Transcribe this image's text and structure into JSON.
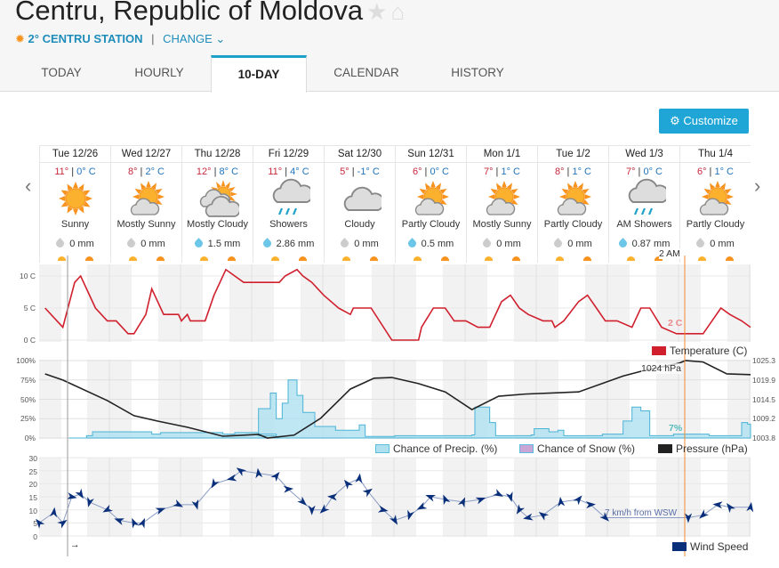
{
  "header": {
    "title": "Centru, Republic of Moldova",
    "station_temp": "2°",
    "station_name": "CENTRU STATION",
    "separator": "|",
    "change": "CHANGE"
  },
  "tabs": [
    {
      "label": "TODAY"
    },
    {
      "label": "HOURLY"
    },
    {
      "label": "10-DAY",
      "active": true
    },
    {
      "label": "CALENDAR"
    },
    {
      "label": "HISTORY"
    }
  ],
  "customize": "Customize",
  "days": [
    {
      "name": "Tue 12/26",
      "hi": "11°",
      "lo": "0° C",
      "icon": "sunny",
      "cond": "Sunny",
      "precip": "0 mm",
      "wet": false
    },
    {
      "name": "Wed 12/27",
      "hi": "8°",
      "lo": "2° C",
      "icon": "mostly-sunny",
      "cond": "Mostly Sunny",
      "precip": "0 mm",
      "wet": false
    },
    {
      "name": "Thu 12/28",
      "hi": "12°",
      "lo": "8° C",
      "icon": "mostly-cloudy",
      "cond": "Mostly Cloudy",
      "precip": "1.5 mm",
      "wet": true
    },
    {
      "name": "Fri 12/29",
      "hi": "11°",
      "lo": "4° C",
      "icon": "showers",
      "cond": "Showers",
      "precip": "2.86 mm",
      "wet": true
    },
    {
      "name": "Sat 12/30",
      "hi": "5°",
      "lo": "-1° C",
      "icon": "cloudy",
      "cond": "Cloudy",
      "precip": "0 mm",
      "wet": false
    },
    {
      "name": "Sun 12/31",
      "hi": "6°",
      "lo": "0° C",
      "icon": "mostly-sunny",
      "cond": "Partly Cloudy",
      "precip": "0.5 mm",
      "wet": true
    },
    {
      "name": "Mon 1/1",
      "hi": "7°",
      "lo": "1° C",
      "icon": "mostly-sunny",
      "cond": "Mostly Sunny",
      "precip": "0 mm",
      "wet": false
    },
    {
      "name": "Tue 1/2",
      "hi": "8°",
      "lo": "1° C",
      "icon": "mostly-sunny",
      "cond": "Partly Cloudy",
      "precip": "0 mm",
      "wet": false
    },
    {
      "name": "Wed 1/3",
      "hi": "7°",
      "lo": "0° C",
      "icon": "showers",
      "cond": "AM Showers",
      "precip": "0.87 mm",
      "wet": true
    },
    {
      "name": "Thu 1/4",
      "hi": "6°",
      "lo": "1° C",
      "icon": "mostly-sunny",
      "cond": "Partly Cloudy",
      "precip": "0 mm",
      "wet": false
    }
  ],
  "colors": {
    "temp": "#d0202e",
    "precip": "#5bc0de",
    "snow": "#b58fc4",
    "pressure": "#222222",
    "wind": "#0a2f7a",
    "accent": "#1fa5d6",
    "cursor": "#f08a30"
  },
  "chart_data": [
    {
      "type": "line",
      "title": "Temperature",
      "legend": "Temperature (C)",
      "x_unit": "hours from start",
      "xlim": [
        0,
        240
      ],
      "ylim": [
        0,
        12
      ],
      "yticks": [
        "0 C",
        "5 C",
        "10 C"
      ],
      "points": [
        [
          2,
          5
        ],
        [
          8,
          2
        ],
        [
          12,
          9
        ],
        [
          14,
          10
        ],
        [
          19,
          5
        ],
        [
          23,
          3
        ],
        [
          26,
          3
        ],
        [
          30,
          1
        ],
        [
          32,
          1
        ],
        [
          36,
          4
        ],
        [
          38,
          8
        ],
        [
          42,
          4
        ],
        [
          47,
          4
        ],
        [
          48,
          3
        ],
        [
          50,
          4
        ],
        [
          51,
          3
        ],
        [
          56,
          3
        ],
        [
          59,
          7
        ],
        [
          63,
          11
        ],
        [
          66,
          10
        ],
        [
          69,
          9
        ],
        [
          81,
          9
        ],
        [
          83,
          10
        ],
        [
          87,
          11
        ],
        [
          89,
          10
        ],
        [
          92,
          9
        ],
        [
          96,
          7
        ],
        [
          101,
          5
        ],
        [
          105,
          4
        ],
        [
          106,
          5
        ],
        [
          112,
          5
        ],
        [
          119,
          0
        ],
        [
          128,
          0
        ],
        [
          129,
          2
        ],
        [
          133,
          5
        ],
        [
          137,
          5
        ],
        [
          140,
          3
        ],
        [
          144,
          3
        ],
        [
          148,
          2
        ],
        [
          152,
          2
        ],
        [
          156,
          6
        ],
        [
          159,
          7
        ],
        [
          162,
          5
        ],
        [
          165,
          4
        ],
        [
          170,
          3
        ],
        [
          173,
          3
        ],
        [
          174,
          2
        ],
        [
          177,
          3
        ],
        [
          182,
          6
        ],
        [
          185,
          7
        ],
        [
          188,
          5
        ],
        [
          191,
          3
        ],
        [
          195,
          3
        ],
        [
          200,
          2
        ],
        [
          203,
          5
        ],
        [
          206,
          5
        ],
        [
          210,
          2
        ],
        [
          215,
          1
        ],
        [
          224,
          1
        ],
        [
          227,
          3
        ],
        [
          230,
          5
        ],
        [
          233,
          4
        ],
        [
          237,
          3
        ],
        [
          240,
          2
        ]
      ],
      "annotation": "2 C"
    },
    {
      "type": "area",
      "title": "Precipitation / Pressure",
      "legend": [
        "Chance of Precip. (%)",
        "Chance of Snow (%)",
        "Pressure (hPa)"
      ],
      "ylim": [
        0,
        100
      ],
      "yticks": [
        "0%",
        "25%",
        "50%",
        "75%",
        "100%"
      ],
      "y2ticks": [
        "1003.8",
        "1009.2",
        "1014.5",
        "1019.9",
        "1025.3"
      ],
      "y2lim": [
        1003.8,
        1025.3
      ],
      "precip": [
        [
          10,
          0
        ],
        [
          16,
          3
        ],
        [
          18,
          8
        ],
        [
          32,
          8
        ],
        [
          38,
          5
        ],
        [
          41,
          7
        ],
        [
          59,
          7
        ],
        [
          62,
          5
        ],
        [
          66,
          7
        ],
        [
          74,
          3
        ],
        [
          80,
          5
        ],
        [
          74,
          5
        ],
        [
          74,
          38
        ],
        [
          78,
          58
        ],
        [
          80,
          25
        ],
        [
          82,
          45
        ],
        [
          84,
          75
        ],
        [
          87,
          55
        ],
        [
          89,
          33
        ],
        [
          93,
          15
        ],
        [
          100,
          10
        ],
        [
          107,
          10
        ],
        [
          108,
          17
        ],
        [
          110,
          2
        ],
        [
          120,
          3
        ],
        [
          146,
          4
        ],
        [
          147,
          40
        ],
        [
          151,
          40
        ],
        [
          152,
          20
        ],
        [
          154,
          3
        ],
        [
          166,
          4
        ],
        [
          167,
          12
        ],
        [
          171,
          12
        ],
        [
          172,
          8
        ],
        [
          175,
          10
        ],
        [
          177,
          3
        ],
        [
          190,
          5
        ],
        [
          196,
          5
        ],
        [
          197,
          22
        ],
        [
          200,
          40
        ],
        [
          203,
          35
        ],
        [
          206,
          3
        ],
        [
          214,
          5
        ],
        [
          220,
          5
        ],
        [
          226,
          3
        ],
        [
          236,
          3
        ],
        [
          237,
          20
        ],
        [
          239,
          18
        ],
        [
          240,
          5
        ]
      ],
      "pressure": [
        [
          2,
          1021.6
        ],
        [
          8,
          1019.9
        ],
        [
          23,
          1014.2
        ],
        [
          32,
          1010
        ],
        [
          40,
          1008.5
        ],
        [
          50,
          1006.8
        ],
        [
          62,
          1004.3
        ],
        [
          74,
          1004.8
        ],
        [
          77,
          1003.8
        ],
        [
          86,
          1004.6
        ],
        [
          95,
          1009.3
        ],
        [
          105,
          1017.4
        ],
        [
          113,
          1020.4
        ],
        [
          119,
          1020.6
        ],
        [
          128,
          1018.9
        ],
        [
          137,
          1016.6
        ],
        [
          146,
          1011.7
        ],
        [
          155,
          1015.4
        ],
        [
          164,
          1016
        ],
        [
          182,
          1016.6
        ],
        [
          197,
          1021
        ],
        [
          203,
          1022.3
        ],
        [
          216,
          1024.6
        ],
        [
          218,
          1025.3
        ],
        [
          224,
          1024.9
        ],
        [
          232,
          1021.6
        ],
        [
          240,
          1021.4
        ]
      ],
      "annotations": [
        "1024 hPa",
        "7%"
      ]
    },
    {
      "type": "line",
      "title": "Wind Speed",
      "legend": "Wind Speed",
      "ylim": [
        0,
        30
      ],
      "yticks": [
        "0",
        "5",
        "10",
        "15",
        "20",
        "25",
        "30"
      ],
      "points": [
        [
          0,
          5
        ],
        [
          5,
          9
        ],
        [
          8,
          5
        ],
        [
          11,
          15
        ],
        [
          14,
          16
        ],
        [
          17,
          13
        ],
        [
          23,
          10
        ],
        [
          27,
          6
        ],
        [
          32,
          5
        ],
        [
          35,
          5
        ],
        [
          41,
          10
        ],
        [
          47,
          12
        ],
        [
          53,
          12
        ],
        [
          59,
          20
        ],
        [
          65,
          22
        ],
        [
          68,
          25
        ],
        [
          74,
          24
        ],
        [
          80,
          23
        ],
        [
          84,
          18
        ],
        [
          89,
          13
        ],
        [
          92,
          10
        ],
        [
          96,
          10
        ],
        [
          99,
          15
        ],
        [
          104,
          20
        ],
        [
          108,
          22
        ],
        [
          111,
          17
        ],
        [
          116,
          10
        ],
        [
          120,
          6
        ],
        [
          125,
          8
        ],
        [
          129,
          11
        ],
        [
          132,
          15
        ],
        [
          137,
          14
        ],
        [
          143,
          13
        ],
        [
          149,
          14
        ],
        [
          155,
          16
        ],
        [
          159,
          15
        ],
        [
          162,
          10
        ],
        [
          165,
          7
        ],
        [
          170,
          8
        ],
        [
          176,
          13
        ],
        [
          182,
          14
        ],
        [
          186,
          12
        ],
        [
          191,
          7
        ],
        [
          219,
          7
        ],
        [
          224,
          8
        ],
        [
          229,
          12
        ],
        [
          233,
          11
        ],
        [
          240,
          11
        ]
      ],
      "annotation": "7 km/h from WSW"
    }
  ],
  "cursor": {
    "time": "2 AM",
    "arrow": "→"
  }
}
